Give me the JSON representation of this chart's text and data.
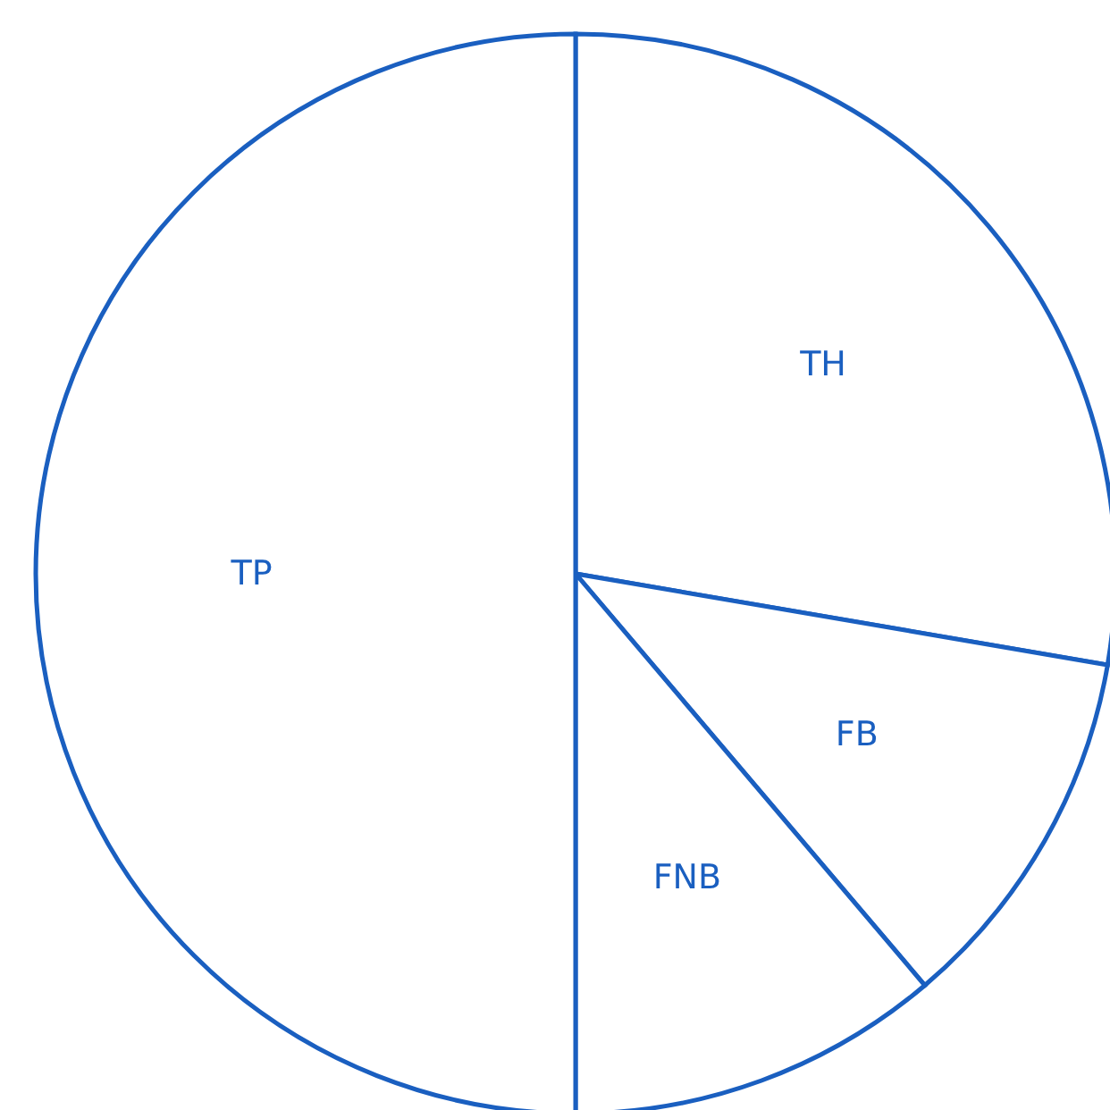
{
  "chart_data": {
    "type": "pie",
    "categories": [
      "TH",
      "FB",
      "FNB",
      "TP"
    ],
    "values": [
      27.7,
      11.1,
      11.2,
      50
    ],
    "colors": [
      "#ffffff",
      "#ffffff",
      "#ffffff",
      "#ffffff"
    ],
    "legend": false
  }
}
